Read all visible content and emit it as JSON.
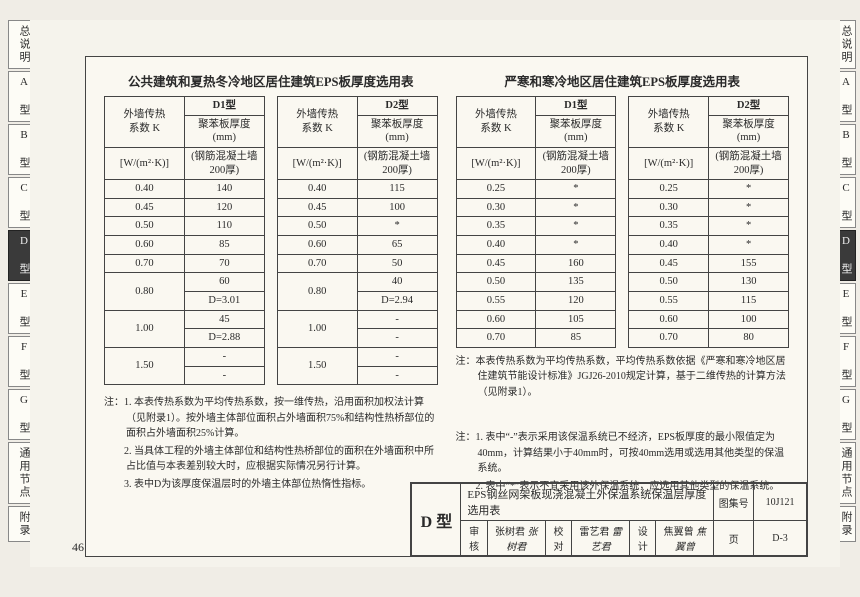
{
  "tabs": [
    "总说明",
    "A 型",
    "B 型",
    "C 型",
    "D 型",
    "E 型",
    "F 型",
    "G 型",
    "通用节点",
    "附录"
  ],
  "active_tab_index": 4,
  "left": {
    "title": "公共建筑和夏热冬冷地区居住建筑EPS板厚度选用表",
    "header": {
      "col_k_l1": "外墙传热",
      "col_k_l2": "系数 K",
      "col_k_unit": "[W/(m²·K)]",
      "d1_l1": "D1型",
      "d1_l2": "聚苯板厚度 (mm)",
      "d1_l3": "(钢筋混凝土墙200厚)",
      "d2_l1": "D2型",
      "d2_l2": "聚苯板厚度 (mm)",
      "d2_l3": "(钢筋混凝土墙200厚)"
    },
    "d1_rows": [
      {
        "k": "0.40",
        "v": "140"
      },
      {
        "k": "0.45",
        "v": "120"
      },
      {
        "k": "0.50",
        "v": "110"
      },
      {
        "k": "0.60",
        "v": "85"
      },
      {
        "k": "0.70",
        "v": "70"
      },
      {
        "k": "0.80",
        "v": "60",
        "rs": 2
      },
      {
        "v": "D=3.01"
      },
      {
        "k": "1.00",
        "v": "45",
        "rs": 2
      },
      {
        "v": "D=2.88"
      },
      {
        "k": "1.50",
        "v": "-",
        "rs": 2
      },
      {
        "v": "-"
      }
    ],
    "d2_rows": [
      {
        "k": "0.40",
        "v": "115"
      },
      {
        "k": "0.45",
        "v": "100"
      },
      {
        "k": "0.50",
        "v": "*"
      },
      {
        "k": "0.60",
        "v": "65"
      },
      {
        "k": "0.70",
        "v": "50"
      },
      {
        "k": "0.80",
        "v": "40",
        "rs": 2
      },
      {
        "v": "D=2.94"
      },
      {
        "k": "1.00",
        "v": "-",
        "rs": 2
      },
      {
        "v": "-"
      },
      {
        "k": "1.50",
        "v": "-",
        "rs": 2
      },
      {
        "v": "-"
      }
    ],
    "notes_label": "注：",
    "notes": [
      "1. 本表传热系数为平均传热系数，按一维传热，沿用面积加权法计算（见附录1）。按外墙主体部位面积占外墙面积75%和结构性热桥部位的面积占外墙面积25%计算。",
      "2. 当具体工程的外墙主体部位和结构性热桥部位的面积在外墙面积中所占比值与本表差别较大时，应根据实际情况另行计算。",
      "3. 表中D为该厚度保温层时的外墙主体部位热惰性指标。"
    ]
  },
  "right": {
    "title": "严寒和寒冷地区居住建筑EPS板厚度选用表",
    "d1_rows": [
      {
        "k": "0.25",
        "v": "*"
      },
      {
        "k": "0.30",
        "v": "*"
      },
      {
        "k": "0.35",
        "v": "*"
      },
      {
        "k": "0.40",
        "v": "*"
      },
      {
        "k": "0.45",
        "v": "160"
      },
      {
        "k": "0.50",
        "v": "135"
      },
      {
        "k": "0.55",
        "v": "120"
      },
      {
        "k": "0.60",
        "v": "105"
      },
      {
        "k": "0.70",
        "v": "85"
      }
    ],
    "d2_rows": [
      {
        "k": "0.25",
        "v": "*"
      },
      {
        "k": "0.30",
        "v": "*"
      },
      {
        "k": "0.35",
        "v": "*"
      },
      {
        "k": "0.40",
        "v": "*"
      },
      {
        "k": "0.45",
        "v": "155"
      },
      {
        "k": "0.50",
        "v": "130"
      },
      {
        "k": "0.55",
        "v": "115"
      },
      {
        "k": "0.60",
        "v": "100"
      },
      {
        "k": "0.70",
        "v": "80"
      }
    ],
    "note_inline_label": "注：",
    "note_inline": "本表传热系数为平均传热系数，平均传热系数依据《严寒和寒冷地区居住建筑节能设计标准》JGJ26-2010规定计算，基于二维传热的计算方法（见附录1）。",
    "notes_label": "注：",
    "notes": [
      "1. 表中“-”表示采用该保温系统已不经济，EPS板厚度的最小限值定为40mm，计算结果小于40mm时，可按40mm选用或选用其他类型的保温系统。",
      "2. 表中“*”表示不宜采用该外保温系统，应选用其他类型的保温系统。"
    ]
  },
  "titleblock": {
    "type_label": "D 型",
    "desc": "EPS钢丝网架板现浇混凝土外保温系统保温层厚度选用表",
    "set_label": "图集号",
    "set_no": "10J121",
    "row2": {
      "a_lab": "审核",
      "a_val": "张树君",
      "a_sig": "张树君",
      "b_lab": "校对",
      "b_val": "雷艺君",
      "b_sig": "雷艺君",
      "c_lab": "设计",
      "c_val": "焦翼曾",
      "c_sig": "焦翼曾",
      "page_lab": "页",
      "page_val": "D-3"
    }
  },
  "page_number": "46"
}
